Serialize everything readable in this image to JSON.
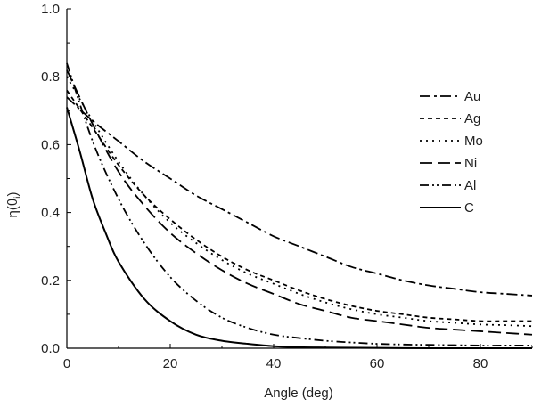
{
  "chart_data": {
    "type": "line",
    "xlabel": "Angle (deg)",
    "ylabel": {
      "main": "η(θ",
      "sub": "i",
      "close": ")"
    },
    "xlim": [
      0,
      90
    ],
    "ylim": [
      0.0,
      1.0
    ],
    "xticks": [
      {
        "value": 0,
        "label": "0"
      },
      {
        "value": 20,
        "label": "20"
      },
      {
        "value": 40,
        "label": "40"
      },
      {
        "value": 60,
        "label": "60"
      },
      {
        "value": 80,
        "label": "80"
      }
    ],
    "yticks": [
      {
        "value": 0.0,
        "label": "0.0"
      },
      {
        "value": 0.2,
        "label": "0.2"
      },
      {
        "value": 0.4,
        "label": "0.4"
      },
      {
        "value": 0.6,
        "label": "0.6"
      },
      {
        "value": 0.8,
        "label": "0.8"
      },
      {
        "value": 1.0,
        "label": "1.0"
      }
    ],
    "grid": false,
    "legend_position": "right",
    "series": [
      {
        "name": "Au",
        "dash": "dash-dot",
        "x": [
          0,
          5,
          10,
          15,
          20,
          25,
          30,
          35,
          40,
          45,
          50,
          55,
          60,
          65,
          70,
          75,
          80,
          85,
          90
        ],
        "y": [
          0.74,
          0.67,
          0.61,
          0.55,
          0.5,
          0.45,
          0.41,
          0.37,
          0.33,
          0.3,
          0.27,
          0.24,
          0.22,
          0.2,
          0.185,
          0.175,
          0.165,
          0.16,
          0.155
        ]
      },
      {
        "name": "Ag",
        "dash": "short-dash",
        "x": [
          0,
          5,
          10,
          15,
          20,
          25,
          30,
          35,
          40,
          45,
          50,
          55,
          60,
          65,
          70,
          75,
          80,
          85,
          90
        ],
        "y": [
          0.76,
          0.65,
          0.54,
          0.45,
          0.38,
          0.32,
          0.27,
          0.23,
          0.2,
          0.17,
          0.145,
          0.125,
          0.11,
          0.1,
          0.09,
          0.085,
          0.08,
          0.08,
          0.08
        ]
      },
      {
        "name": "Mo",
        "dash": "dot",
        "x": [
          0,
          5,
          10,
          15,
          20,
          25,
          30,
          35,
          40,
          45,
          50,
          55,
          60,
          65,
          70,
          75,
          80,
          85,
          90
        ],
        "y": [
          0.8,
          0.67,
          0.55,
          0.45,
          0.37,
          0.31,
          0.26,
          0.22,
          0.19,
          0.16,
          0.135,
          0.115,
          0.1,
          0.09,
          0.08,
          0.075,
          0.07,
          0.068,
          0.065
        ]
      },
      {
        "name": "Ni",
        "dash": "long-dash",
        "x": [
          0,
          5,
          10,
          15,
          20,
          25,
          30,
          35,
          40,
          45,
          50,
          55,
          60,
          65,
          70,
          75,
          80,
          85,
          90
        ],
        "y": [
          0.82,
          0.66,
          0.52,
          0.42,
          0.34,
          0.28,
          0.23,
          0.19,
          0.16,
          0.13,
          0.11,
          0.09,
          0.08,
          0.07,
          0.06,
          0.055,
          0.05,
          0.045,
          0.04
        ]
      },
      {
        "name": "Al",
        "dash": "dash-dot-dot",
        "x": [
          0,
          5,
          10,
          15,
          20,
          25,
          30,
          35,
          40,
          45,
          50,
          55,
          60,
          65,
          70,
          75,
          80,
          85,
          90
        ],
        "y": [
          0.84,
          0.61,
          0.44,
          0.31,
          0.21,
          0.14,
          0.09,
          0.06,
          0.04,
          0.03,
          0.022,
          0.017,
          0.013,
          0.011,
          0.01,
          0.009,
          0.008,
          0.008,
          0.008
        ]
      },
      {
        "name": "C",
        "dash": "solid",
        "x": [
          0,
          2.5,
          5,
          7.5,
          10,
          15,
          20,
          25,
          30,
          35,
          40,
          45,
          50,
          60,
          70,
          80,
          90
        ],
        "y": [
          0.71,
          0.58,
          0.44,
          0.34,
          0.255,
          0.145,
          0.08,
          0.04,
          0.022,
          0.013,
          0.006,
          0.003,
          0.002,
          0.001,
          0.0,
          0.0,
          0.0
        ]
      }
    ]
  }
}
